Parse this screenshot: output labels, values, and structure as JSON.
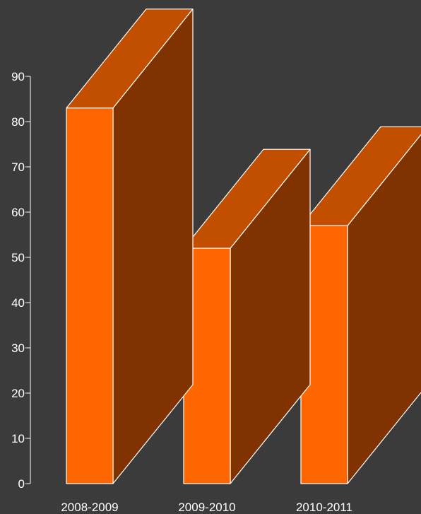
{
  "chart_data": {
    "type": "bar",
    "style": "3d",
    "categories": [
      "2008-2009",
      "2009-2010",
      "2010-2011"
    ],
    "values": [
      83,
      52,
      57
    ],
    "ylim": [
      0,
      90
    ],
    "yticks": [
      0,
      10,
      20,
      30,
      40,
      50,
      60,
      70,
      80,
      90
    ],
    "title": "",
    "xlabel": "",
    "ylabel": "",
    "grid": false,
    "legend": "none",
    "colors": {
      "background": "#3b3b3b",
      "bar_front": "#ff6600",
      "bar_top": "#c24e00",
      "bar_side": "#803300",
      "outline": "#ffffff",
      "text": "#ffffff"
    }
  }
}
